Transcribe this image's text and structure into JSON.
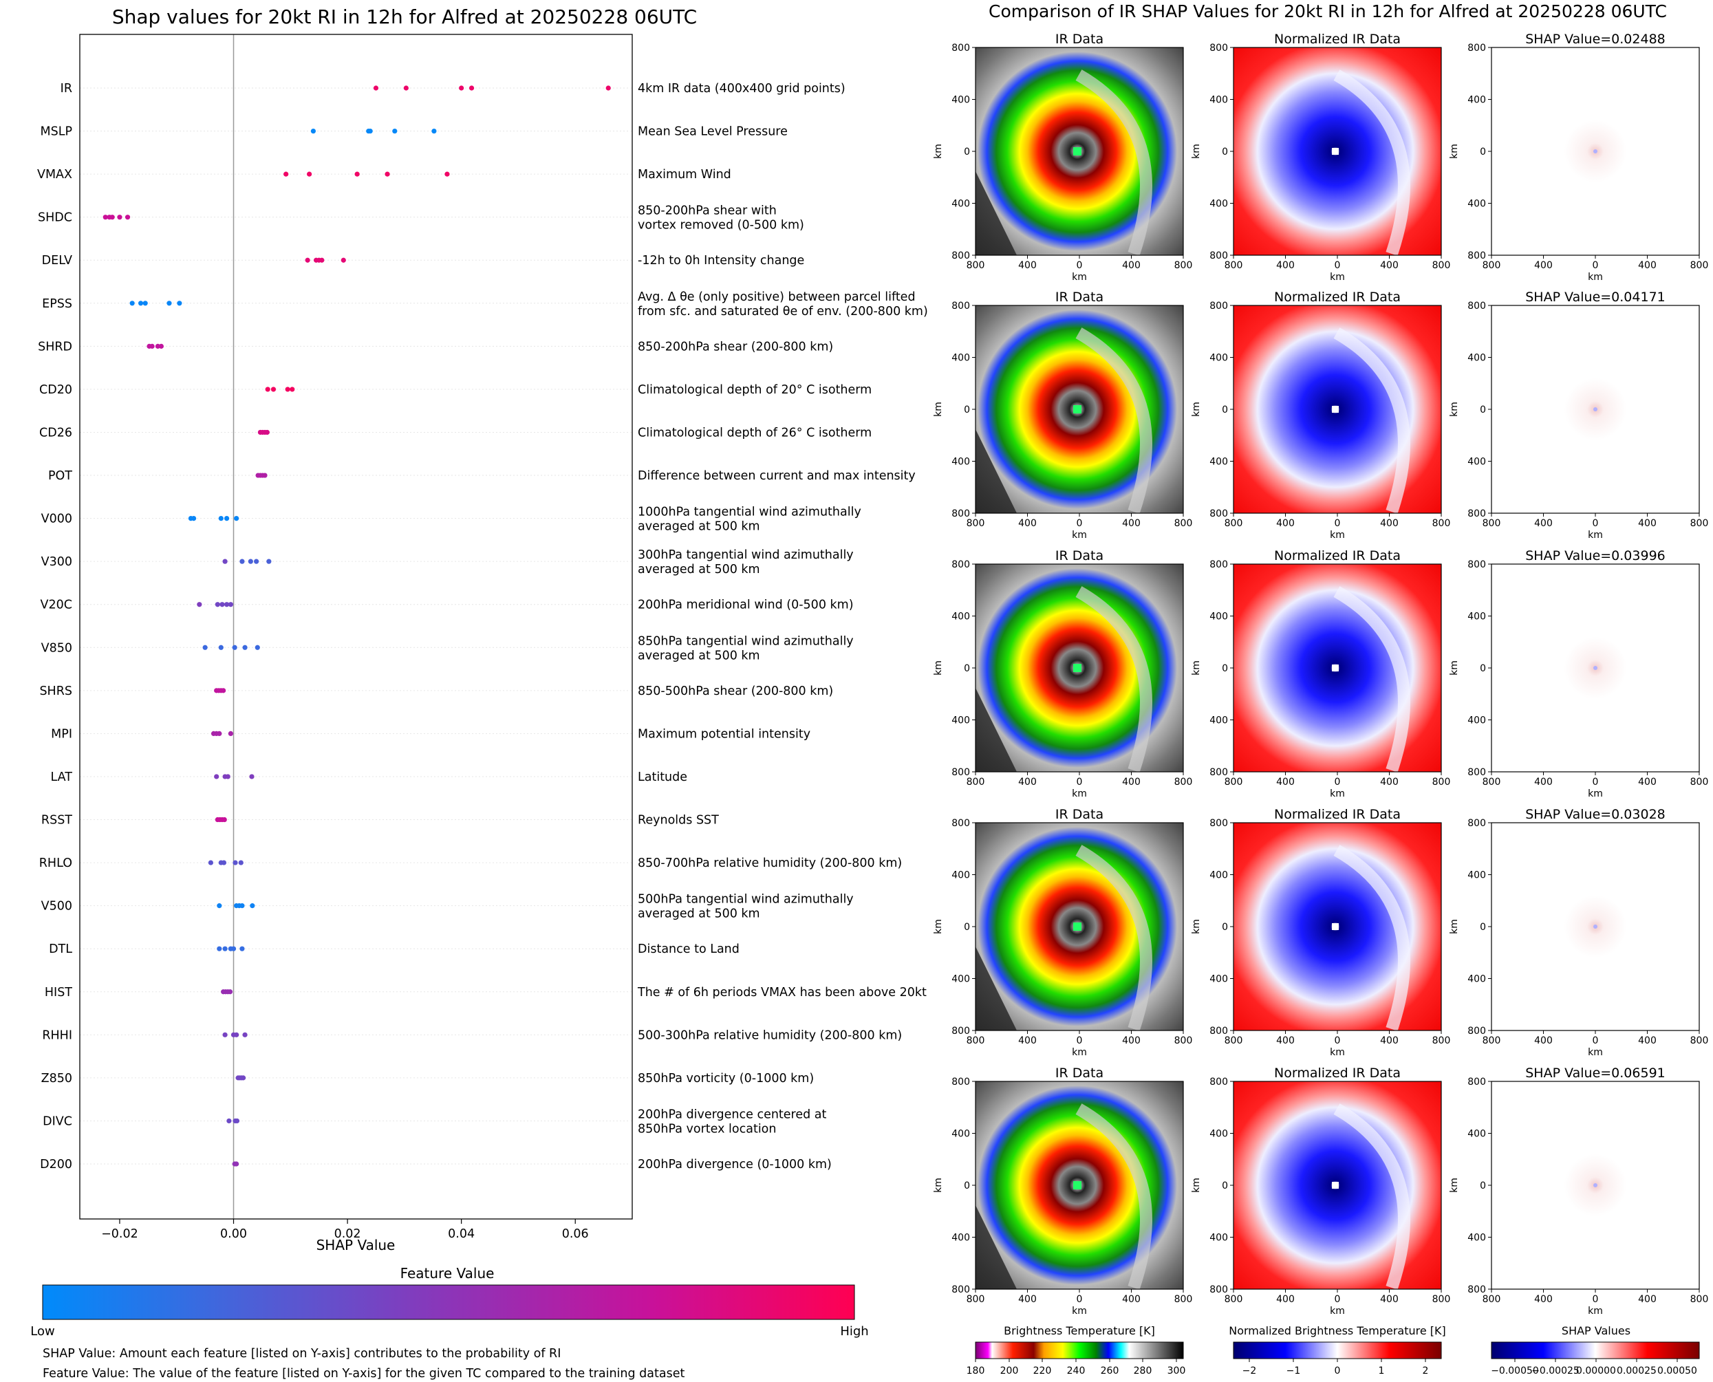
{
  "chart_data": [
    {
      "type": "scatter",
      "title": "Shap values for 20kt RI in 12h for Alfred at 20250228 06UTC",
      "xlabel": "SHAP Value",
      "xlim": [
        -0.027,
        0.07
      ],
      "xticks": [
        -0.02,
        0.0,
        0.02,
        0.04,
        0.06
      ],
      "xtick_labels": [
        "−0.02",
        "0.00",
        "0.02",
        "0.04",
        "0.06"
      ],
      "zero_line": true,
      "colorbar": {
        "title": "Feature Value",
        "low": "Low",
        "high": "High",
        "colors": [
          "#008bfb",
          "#4a61d8",
          "#8c35b8",
          "#c8119a",
          "#ff0052"
        ]
      },
      "features": [
        {
          "name": "IR",
          "desc": [
            "4km IR data (400x400 grid points)"
          ],
          "points": [
            [
              0.025,
              0.92
            ],
            [
              0.0303,
              0.92
            ],
            [
              0.04,
              0.92
            ],
            [
              0.0418,
              0.92
            ],
            [
              0.0658,
              0.92
            ]
          ]
        },
        {
          "name": "MSLP",
          "desc": [
            "Mean Sea Level Pressure"
          ],
          "points": [
            [
              0.014,
              0.02
            ],
            [
              0.0237,
              0.02
            ],
            [
              0.024,
              0.02
            ],
            [
              0.0283,
              0.02
            ],
            [
              0.0352,
              0.02
            ]
          ]
        },
        {
          "name": "VMAX",
          "desc": [
            "Maximum Wind"
          ],
          "points": [
            [
              0.0092,
              0.93
            ],
            [
              0.0133,
              0.93
            ],
            [
              0.0217,
              0.93
            ],
            [
              0.027,
              0.93
            ],
            [
              0.0375,
              0.93
            ]
          ]
        },
        {
          "name": "SHDC",
          "desc": [
            "850-200hPa shear with",
            "vortex removed (0-500 km)"
          ],
          "points": [
            [
              -0.0225,
              0.76
            ],
            [
              -0.0218,
              0.76
            ],
            [
              -0.0213,
              0.76
            ],
            [
              -0.02,
              0.76
            ],
            [
              -0.0186,
              0.76
            ]
          ]
        },
        {
          "name": "DELV",
          "desc": [
            "-12h to 0h Intensity change"
          ],
          "points": [
            [
              0.013,
              0.88
            ],
            [
              0.0145,
              0.88
            ],
            [
              0.015,
              0.88
            ],
            [
              0.0155,
              0.88
            ],
            [
              0.0193,
              0.88
            ]
          ]
        },
        {
          "name": "EPSS",
          "desc": [
            "Avg. Δ θe (only positive) between parcel lifted",
            "from sfc. and saturated θe of env. (200-800 km)"
          ],
          "points": [
            [
              -0.0178,
              0.03
            ],
            [
              -0.0163,
              0.03
            ],
            [
              -0.0155,
              0.03
            ],
            [
              -0.0113,
              0.03
            ],
            [
              -0.0095,
              0.03
            ]
          ]
        },
        {
          "name": "SHRD",
          "desc": [
            "850-200hPa shear (200-800 km)"
          ],
          "points": [
            [
              -0.0148,
              0.72
            ],
            [
              -0.0143,
              0.72
            ],
            [
              -0.0133,
              0.72
            ],
            [
              -0.0127,
              0.72
            ]
          ]
        },
        {
          "name": "CD20",
          "desc": [
            "Climatological depth of 20° C isotherm"
          ],
          "points": [
            [
              0.006,
              0.95
            ],
            [
              0.007,
              0.95
            ],
            [
              0.0095,
              0.95
            ],
            [
              0.0103,
              0.95
            ]
          ]
        },
        {
          "name": "CD26",
          "desc": [
            "Climatological depth of 26° C isotherm"
          ],
          "points": [
            [
              0.0047,
              0.82
            ],
            [
              0.0051,
              0.82
            ],
            [
              0.0055,
              0.82
            ],
            [
              0.0059,
              0.82
            ]
          ]
        },
        {
          "name": "POT",
          "desc": [
            "Difference between current and max intensity"
          ],
          "points": [
            [
              0.0043,
              0.65
            ],
            [
              0.0047,
              0.65
            ],
            [
              0.0051,
              0.65
            ],
            [
              0.0055,
              0.65
            ]
          ]
        },
        {
          "name": "V000",
          "desc": [
            "1000hPa tangential wind azimuthally",
            "averaged at 500 km"
          ],
          "points": [
            [
              -0.0075,
              0.03
            ],
            [
              -0.007,
              0.03
            ],
            [
              -0.0022,
              0.03
            ],
            [
              -0.0012,
              0.03
            ],
            [
              0.0005,
              0.03
            ]
          ]
        },
        {
          "name": "V300",
          "desc": [
            "300hPa tangential wind azimuthally",
            "averaged at 500 km"
          ],
          "points": [
            [
              -0.0015,
              0.4
            ],
            [
              0.0015,
              0.25
            ],
            [
              0.003,
              0.25
            ],
            [
              0.004,
              0.25
            ],
            [
              0.0062,
              0.25
            ]
          ]
        },
        {
          "name": "V20C",
          "desc": [
            "200hPa meridional wind (0-500 km)"
          ],
          "points": [
            [
              -0.006,
              0.45
            ],
            [
              -0.0028,
              0.4
            ],
            [
              -0.002,
              0.4
            ],
            [
              -0.0012,
              0.4
            ],
            [
              -0.0005,
              0.4
            ]
          ]
        },
        {
          "name": "V850",
          "desc": [
            "850hPa tangential wind azimuthally",
            "averaged at 500 km"
          ],
          "points": [
            [
              -0.005,
              0.2
            ],
            [
              -0.0022,
              0.2
            ],
            [
              0.0002,
              0.2
            ],
            [
              0.002,
              0.2
            ],
            [
              0.0042,
              0.2
            ]
          ]
        },
        {
          "name": "SHRS",
          "desc": [
            "850-500hPa shear (200-800 km)"
          ],
          "points": [
            [
              -0.003,
              0.72
            ],
            [
              -0.0026,
              0.72
            ],
            [
              -0.0022,
              0.72
            ],
            [
              -0.0018,
              0.72
            ]
          ]
        },
        {
          "name": "MPI",
          "desc": [
            "Maximum potential intensity"
          ],
          "points": [
            [
              -0.0035,
              0.62
            ],
            [
              -0.003,
              0.62
            ],
            [
              -0.0025,
              0.62
            ],
            [
              -0.0005,
              0.62
            ]
          ]
        },
        {
          "name": "LAT",
          "desc": [
            "Latitude"
          ],
          "points": [
            [
              -0.003,
              0.45
            ],
            [
              -0.0015,
              0.45
            ],
            [
              -0.001,
              0.45
            ],
            [
              0.0032,
              0.45
            ]
          ]
        },
        {
          "name": "RSST",
          "desc": [
            "Reynolds SST"
          ],
          "points": [
            [
              -0.0028,
              0.75
            ],
            [
              -0.0024,
              0.75
            ],
            [
              -0.002,
              0.75
            ],
            [
              -0.0016,
              0.75
            ]
          ]
        },
        {
          "name": "RHLO",
          "desc": [
            "850-700hPa relative humidity (200-800 km)"
          ],
          "points": [
            [
              -0.004,
              0.32
            ],
            [
              -0.0022,
              0.32
            ],
            [
              -0.0017,
              0.32
            ],
            [
              0.0003,
              0.32
            ],
            [
              0.0013,
              0.32
            ]
          ]
        },
        {
          "name": "V500",
          "desc": [
            "500hPa tangential wind azimuthally",
            "averaged at 500 km"
          ],
          "points": [
            [
              -0.0025,
              0.05
            ],
            [
              0.0005,
              0.05
            ],
            [
              0.001,
              0.05
            ],
            [
              0.0015,
              0.05
            ],
            [
              0.0033,
              0.05
            ]
          ]
        },
        {
          "name": "DTL",
          "desc": [
            "Distance to Land"
          ],
          "points": [
            [
              -0.0025,
              0.18
            ],
            [
              -0.0015,
              0.18
            ],
            [
              -0.0005,
              0.18
            ],
            [
              0.0,
              0.18
            ],
            [
              0.0015,
              0.18
            ]
          ]
        },
        {
          "name": "HIST",
          "desc": [
            "The # of 6h periods VMAX has been above 20kt"
          ],
          "points": [
            [
              -0.0018,
              0.55
            ],
            [
              -0.0014,
              0.55
            ],
            [
              -0.001,
              0.55
            ],
            [
              -0.0006,
              0.55
            ]
          ]
        },
        {
          "name": "RHHI",
          "desc": [
            "500-300hPa relative humidity (200-800 km)"
          ],
          "points": [
            [
              -0.0015,
              0.42
            ],
            [
              0.0,
              0.42
            ],
            [
              0.0005,
              0.42
            ],
            [
              0.002,
              0.42
            ]
          ]
        },
        {
          "name": "Z850",
          "desc": [
            "850hPa vorticity (0-1000 km)"
          ],
          "points": [
            [
              0.0008,
              0.4
            ],
            [
              0.0011,
              0.4
            ],
            [
              0.0014,
              0.4
            ],
            [
              0.0017,
              0.4
            ]
          ]
        },
        {
          "name": "DIVC",
          "desc": [
            "200hPa divergence centered at",
            "850hPa vortex location"
          ],
          "points": [
            [
              -0.0008,
              0.38
            ],
            [
              0.0003,
              0.38
            ],
            [
              0.0006,
              0.38
            ]
          ]
        },
        {
          "name": "D200",
          "desc": [
            "200hPa divergence (0-1000 km)"
          ],
          "points": [
            [
              0.0002,
              0.52
            ],
            [
              0.0005,
              0.52
            ]
          ]
        }
      ]
    },
    {
      "type": "heatmap",
      "title": "Comparison of IR SHAP Values for 20kt RI in 12h for Alfred at 20250228 06UTC",
      "panel_titles": [
        "IR Data",
        "Normalized IR Data"
      ],
      "shap_titles": [
        "SHAP Value=0.02488",
        "SHAP Value=0.04171",
        "SHAP Value=0.03996",
        "SHAP Value=0.03028",
        "SHAP Value=0.06591"
      ],
      "axis_label": "km",
      "tick_labels": [
        "800",
        "400",
        "0",
        "400",
        "800"
      ],
      "colorbars": [
        {
          "label": "Brightness Temperature [K]",
          "ticks": [
            "180",
            "200",
            "220",
            "240",
            "260",
            "280",
            "300"
          ]
        },
        {
          "label": "Normalized Brightness Temperature [K]",
          "ticks": [
            "−2",
            "−1",
            "0",
            "1",
            "2"
          ]
        },
        {
          "label": "SHAP Values",
          "ticks": [
            "−0.00050",
            "−0.00025",
            "0.00000",
            "0.00025",
            "0.00050"
          ]
        }
      ]
    }
  ],
  "footnotes": [
    "SHAP Value: Amount each feature [listed on Y-axis] contributes to the probability of RI",
    "Feature Value: The value of the feature [listed on Y-axis] for the given TC compared to the training dataset"
  ]
}
